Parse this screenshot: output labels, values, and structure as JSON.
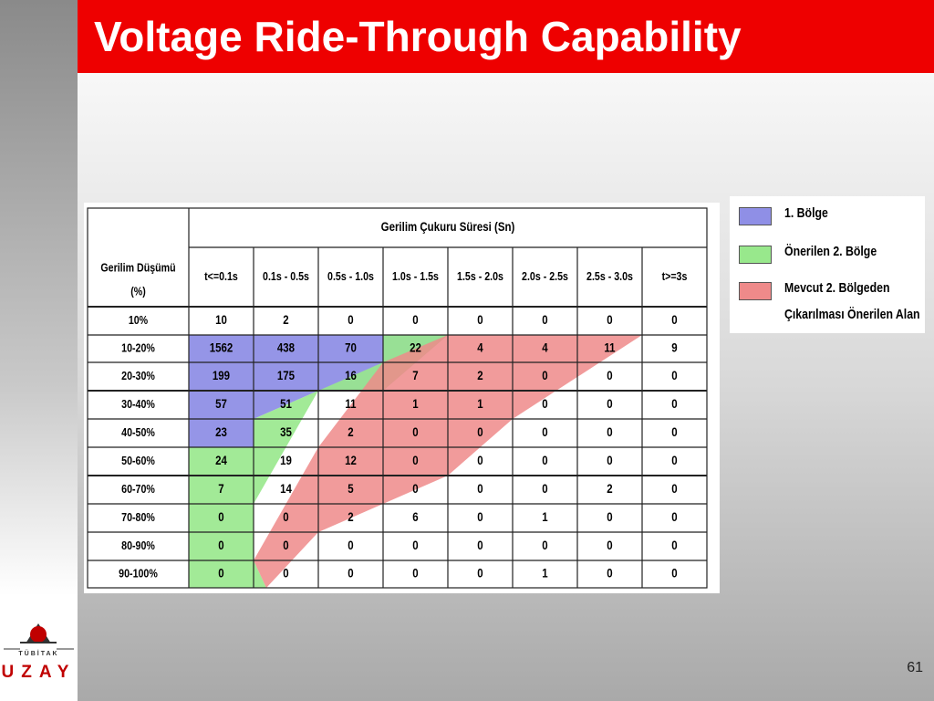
{
  "slide": {
    "title": "Voltage Ride-Through Capability",
    "page_number": "61"
  },
  "logo": {
    "org_small": "TÜBİTAK",
    "org_big": "UZAY",
    "icon": "tubitak-logo-icon"
  },
  "colors": {
    "title_bar": "#ee0000",
    "region1": "#8f8fe6",
    "region2": "#98e88c",
    "region_removed": "#ef8a8a"
  },
  "table": {
    "group_header": "Gerilim Çukuru Süresi (Sn)",
    "row_header": "Gerilim Düşümü (%)",
    "columns": [
      "t<=0.1s",
      "0.1s - 0.5s",
      "0.5s - 1.0s",
      "1.0s - 1.5s",
      "1.5s - 2.0s",
      "2.0s - 2.5s",
      "2.5s - 3.0s",
      "t>=3s"
    ],
    "rows": [
      {
        "label": "10%",
        "values": [
          "10",
          "2",
          "0",
          "0",
          "0",
          "0",
          "0",
          "0"
        ]
      },
      {
        "label": "10-20%",
        "values": [
          "1562",
          "438",
          "70",
          "22",
          "4",
          "4",
          "11",
          "9"
        ]
      },
      {
        "label": "20-30%",
        "values": [
          "199",
          "175",
          "16",
          "7",
          "2",
          "0",
          "0",
          "0"
        ]
      },
      {
        "label": "30-40%",
        "values": [
          "57",
          "51",
          "11",
          "1",
          "1",
          "0",
          "0",
          "0"
        ]
      },
      {
        "label": "40-50%",
        "values": [
          "23",
          "35",
          "2",
          "0",
          "0",
          "0",
          "0",
          "0"
        ]
      },
      {
        "label": "50-60%",
        "values": [
          "24",
          "19",
          "12",
          "0",
          "0",
          "0",
          "0",
          "0"
        ]
      },
      {
        "label": "60-70%",
        "values": [
          "7",
          "14",
          "5",
          "0",
          "0",
          "0",
          "2",
          "0"
        ]
      },
      {
        "label": "70-80%",
        "values": [
          "0",
          "0",
          "2",
          "6",
          "0",
          "1",
          "0",
          "0"
        ]
      },
      {
        "label": "80-90%",
        "values": [
          "0",
          "0",
          "0",
          "0",
          "0",
          "0",
          "0",
          "0"
        ]
      },
      {
        "label": "90-100%",
        "values": [
          "0",
          "0",
          "0",
          "0",
          "0",
          "1",
          "0",
          "0"
        ]
      }
    ]
  },
  "legend": [
    {
      "label_lines": [
        "1. Bölge"
      ],
      "color": "#8f8fe6"
    },
    {
      "label_lines": [
        "Önerilen 2. Bölge"
      ],
      "color": "#98e88c"
    },
    {
      "label_lines": [
        "Mevcut 2. Bölgeden",
        "Çıkarılması Önerilen Alan"
      ],
      "color": "#ef8a8a"
    }
  ]
}
